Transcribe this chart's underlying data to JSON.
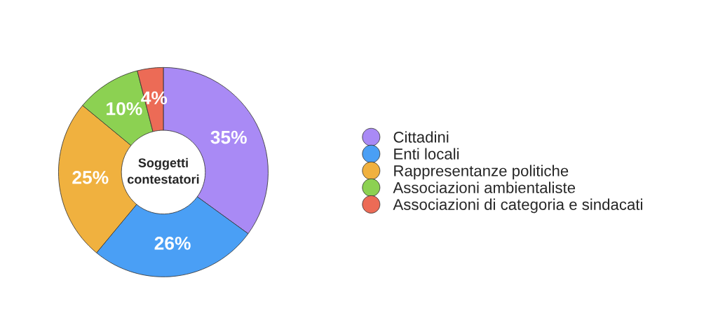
{
  "chart_data": {
    "type": "donut",
    "title": "Soggetti\ncontestatori",
    "categories": [
      "Cittadini",
      "Enti locali",
      "Rappresentanze politiche",
      "Associazioni ambientaliste",
      "Associazioni di categoria e sindacati"
    ],
    "values": [
      35,
      26,
      25,
      10,
      4
    ],
    "colors": [
      "#a98af5",
      "#4a9ff5",
      "#f0b13f",
      "#8cd152",
      "#ec6b56"
    ],
    "value_labels": [
      "35%",
      "26%",
      "25%",
      "10%",
      "4%"
    ],
    "legend": "right"
  }
}
